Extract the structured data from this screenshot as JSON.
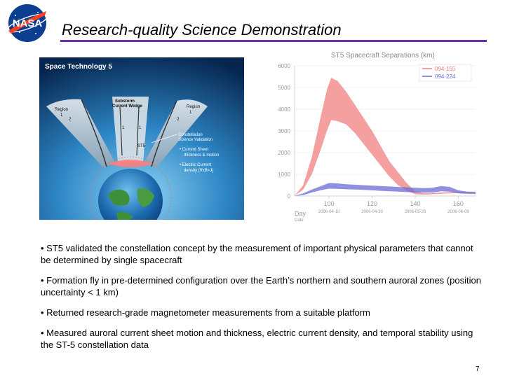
{
  "slide": {
    "logo_text": "NASA",
    "title": "Research-quality Science Demonstration",
    "page_number": "7"
  },
  "illustration": {
    "heading": "Space Technology 5",
    "region_left": "Region",
    "region_left_num": "1",
    "substorm": "Substorm",
    "current_wedge": "Current Wedge",
    "region_right": "Region",
    "region_right_num": "1",
    "num_2_left": "2",
    "num_2_right": "2",
    "num_1_a": "1",
    "num_1_b": "1",
    "st5_label": "ST5",
    "csv_line1": "Constellation",
    "csv_line2": "Science Validation",
    "bullet_a1": "• Current Sheet",
    "bullet_a2": "thickness & motion",
    "bullet_b1": "• Electric Current",
    "bullet_b2": "density (∇xB=J)"
  },
  "chart_data": {
    "type": "area",
    "title": "ST5 Spacecraft Separations (km)",
    "xlabel": "Day",
    "date_label": "Date",
    "x_ticks": [
      100,
      120,
      140,
      160
    ],
    "date_ticks": [
      "2006-04-10",
      "2006-04-30",
      "2006-05-20",
      "2006-06-09"
    ],
    "ylim": [
      0,
      6000
    ],
    "xlim": [
      84,
      168
    ],
    "y_ticks": [
      0,
      1000,
      2000,
      3000,
      4000,
      5000,
      6000
    ],
    "legend_position": "top-right",
    "series": [
      {
        "name": "094-155",
        "color": "#f08080",
        "x": [
          84,
          88,
          92,
          96,
          99,
          101,
          104,
          108,
          112,
          116,
          120,
          124,
          128,
          132,
          136,
          140,
          144,
          148,
          152,
          156,
          160,
          164,
          168
        ],
        "upper": [
          0,
          500,
          1800,
          3600,
          4900,
          5450,
          5300,
          4800,
          4200,
          3600,
          3000,
          2300,
          1600,
          1100,
          600,
          200,
          120,
          140,
          160,
          180,
          190,
          200,
          200
        ],
        "lower": [
          0,
          300,
          1000,
          2100,
          3000,
          3500,
          3450,
          3300,
          2900,
          2400,
          1900,
          1400,
          900,
          500,
          250,
          80,
          60,
          80,
          100,
          120,
          140,
          150,
          160
        ]
      },
      {
        "name": "094-224",
        "color": "#6b6bd6",
        "x": [
          84,
          88,
          92,
          96,
          100,
          104,
          108,
          112,
          116,
          120,
          124,
          128,
          132,
          136,
          140,
          144,
          148,
          152,
          156,
          160,
          164,
          168
        ],
        "upper": [
          0,
          120,
          300,
          450,
          600,
          580,
          540,
          520,
          500,
          480,
          460,
          440,
          420,
          400,
          380,
          360,
          380,
          460,
          420,
          260,
          200,
          180
        ],
        "lower": [
          0,
          40,
          160,
          260,
          340,
          330,
          310,
          300,
          280,
          260,
          240,
          220,
          200,
          180,
          160,
          150,
          160,
          220,
          200,
          120,
          100,
          90
        ]
      }
    ]
  },
  "bullets": [
    "• ST5 validated the constellation concept by the measurement of important physical parameters that cannot be determined by single spacecraft",
    "• Formation fly in pre-determined configuration over the Earth’s northern and southern auroral zones (position uncertainty < 1 km)",
    "• Returned research-grade magnetometer measurements from a suitable platform",
    "• Measured auroral current sheet motion and thickness, electric current density, and temporal stability using the ST-5 constellation data"
  ]
}
